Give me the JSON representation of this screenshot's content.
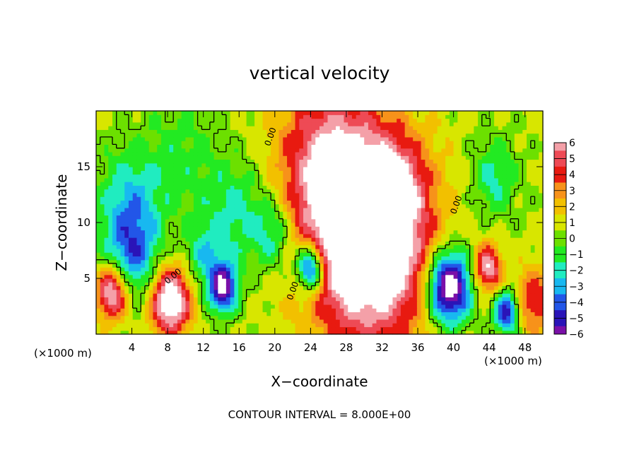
{
  "chart_data": {
    "type": "heatmap",
    "title": "vertical velocity",
    "xlabel": "X−coordinate",
    "ylabel": "Z−coordinate",
    "x_unit_left": "(×1000 m)",
    "x_unit_right": "(×1000 m)",
    "xlim": [
      0,
      50
    ],
    "ylim": [
      0,
      20
    ],
    "x_ticks": [
      4,
      8,
      12,
      16,
      20,
      24,
      28,
      32,
      36,
      40,
      44,
      48
    ],
    "x_tick_labels": [
      "4",
      "8",
      "12",
      "16",
      "20",
      "24",
      "28",
      "32",
      "36",
      "40",
      "44",
      "48"
    ],
    "y_ticks": [
      5,
      10,
      15
    ],
    "y_tick_labels": [
      "5",
      "10",
      "15"
    ],
    "colorbar": {
      "levels": [
        6,
        5,
        4,
        3,
        2,
        1,
        0,
        -1,
        -2,
        -3,
        -4,
        -5,
        -6
      ],
      "labels": [
        "6",
        "5",
        "4",
        "3",
        "2",
        "1",
        "0",
        "−1",
        "−2",
        "−3",
        "−4",
        "−5",
        "−6"
      ],
      "colors": [
        "#f4a0a8",
        "#ee4a55",
        "#e81a10",
        "#f7921a",
        "#f2c000",
        "#d8e600",
        "#6ce000",
        "#22ea22",
        "#20ecc0",
        "#18b8f0",
        "#2256e8",
        "#2a14b8",
        "#7a10a8"
      ]
    },
    "contour_labels": [
      "0.00",
      "0.00",
      "0.00",
      "0.00"
    ],
    "annotation": "CONTOUR INTERVAL = 8.000E+00",
    "features": [
      {
        "x": 30.5,
        "z": 8.5,
        "w": 6.5,
        "peak": 10
      },
      {
        "x": 25.7,
        "z": 15.5,
        "w": 5.5,
        "peak": 4.5
      },
      {
        "x": 33.5,
        "z": 13.0,
        "w": 3.0,
        "peak": 3
      },
      {
        "x": 8.3,
        "z": 3.0,
        "w": 2.2,
        "peak": 8
      },
      {
        "x": 1.8,
        "z": 3.8,
        "w": 1.8,
        "peak": 7
      },
      {
        "x": 43.8,
        "z": 6.0,
        "w": 1.5,
        "peak": 6
      },
      {
        "x": 49.0,
        "z": 3.0,
        "w": 2.2,
        "peak": 4
      },
      {
        "x": 39.5,
        "z": 4.3,
        "w": 2.4,
        "peak": -9
      },
      {
        "x": 24.0,
        "z": 6.0,
        "w": 1.6,
        "peak": -8
      },
      {
        "x": 14.2,
        "z": 4.2,
        "w": 1.6,
        "peak": -7
      },
      {
        "x": 46.0,
        "z": 2.0,
        "w": 1.4,
        "peak": -6
      },
      {
        "x": 4.0,
        "z": 7.0,
        "w": 3.0,
        "peak": -4
      },
      {
        "x": 3.8,
        "z": 12.0,
        "w": 3.5,
        "peak": -3
      },
      {
        "x": 15.5,
        "z": 11.0,
        "w": 3.5,
        "peak": -2.5
      },
      {
        "x": 20.0,
        "z": 9.0,
        "w": 2.5,
        "peak": -3
      },
      {
        "x": 44.5,
        "z": 14.0,
        "w": 2.5,
        "peak": -2.5
      },
      {
        "x": 9.5,
        "z": 16.0,
        "w": 4.0,
        "peak": -1.5
      },
      {
        "x": 12.0,
        "z": 7.0,
        "w": 2.0,
        "peak": -2.5
      }
    ]
  }
}
